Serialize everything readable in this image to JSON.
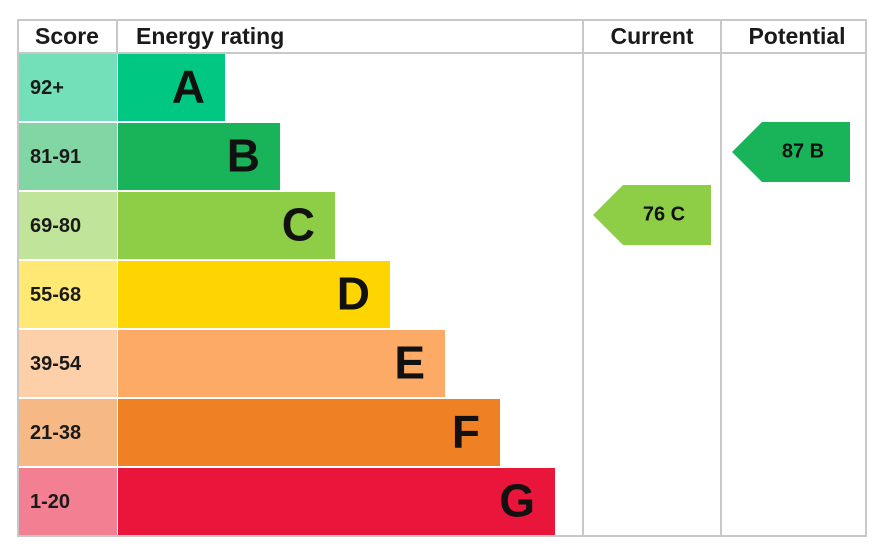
{
  "header": {
    "score": "Score",
    "energy_rating": "Energy rating",
    "current": "Current",
    "potential": "Potential"
  },
  "bands": [
    {
      "score": "92+",
      "letter": "A",
      "color": "#00c781"
    },
    {
      "score": "81-91",
      "letter": "B",
      "color": "#19b459"
    },
    {
      "score": "69-80",
      "letter": "C",
      "color": "#8dce46"
    },
    {
      "score": "55-68",
      "letter": "D",
      "color": "#ffd500"
    },
    {
      "score": "39-54",
      "letter": "E",
      "color": "#fcaa65"
    },
    {
      "score": "21-38",
      "letter": "F",
      "color": "#ef8023"
    },
    {
      "score": "1-20",
      "letter": "G",
      "color": "#e9153b"
    }
  ],
  "current": {
    "label": "76 C",
    "color": "#8dce46"
  },
  "potential": {
    "label": "87 B",
    "color": "#19b459"
  }
}
